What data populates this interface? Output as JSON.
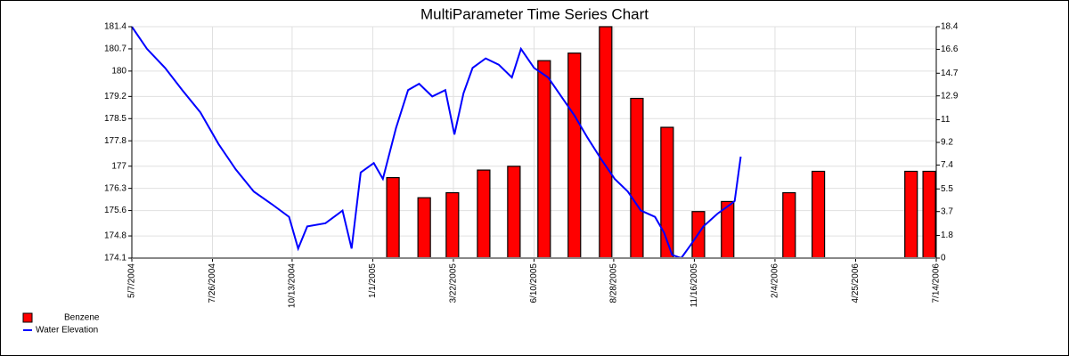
{
  "chart_data": {
    "type": "combo",
    "title": "MultiParameter Time Series Chart",
    "xlim": [
      "2004-05-07",
      "2006-07-14"
    ],
    "xticks": [
      {
        "value": "2004-05-07",
        "label": "5/7/2004"
      },
      {
        "value": "2004-07-26",
        "label": "7/26/2004"
      },
      {
        "value": "2004-10-13",
        "label": "10/13/2004"
      },
      {
        "value": "2005-01-01",
        "label": "1/1/2005"
      },
      {
        "value": "2005-03-22",
        "label": "3/22/2005"
      },
      {
        "value": "2005-06-10",
        "label": "6/10/2005"
      },
      {
        "value": "2005-08-28",
        "label": "8/28/2005"
      },
      {
        "value": "2005-11-16",
        "label": "11/16/2005"
      },
      {
        "value": "2006-02-04",
        "label": "2/4/2006"
      },
      {
        "value": "2006-04-25",
        "label": "4/25/2006"
      },
      {
        "value": "2006-07-14",
        "label": "7/14/2006"
      }
    ],
    "ylim": [
      174.1,
      181.4
    ],
    "yticks": [
      174.1,
      174.8,
      175.6,
      176.3,
      177,
      177.8,
      178.5,
      179.2,
      180,
      180.7,
      181.4
    ],
    "y2lim": [
      0,
      18.4
    ],
    "y2ticks": [
      0,
      1.8,
      3.7,
      5.5,
      7.4,
      9.2,
      11,
      12.9,
      14.7,
      16.6,
      18.4
    ],
    "grid": true,
    "legend": "bottom-left",
    "series": [
      {
        "name": "Benzene",
        "type": "bar",
        "axis": "y2",
        "color": "#ff0000",
        "x": [
          "2005-01-21",
          "2005-02-21",
          "2005-03-21",
          "2005-04-21",
          "2005-05-21",
          "2005-06-20",
          "2005-07-20",
          "2005-08-20",
          "2005-09-20",
          "2005-10-20",
          "2005-11-20",
          "2005-12-19",
          "2006-02-18",
          "2006-03-19",
          "2006-06-19",
          "2006-07-07"
        ],
        "values": [
          6.4,
          4.8,
          5.2,
          7.0,
          7.3,
          15.7,
          16.3,
          18.4,
          12.7,
          10.4,
          3.7,
          4.5,
          5.2,
          6.9,
          6.9,
          6.9
        ]
      },
      {
        "name": "Water Elevation",
        "type": "line",
        "color": "#0000ff",
        "x": [
          "2004-05-07",
          "2004-05-22",
          "2004-06-09",
          "2004-06-26",
          "2004-07-14",
          "2004-08-01",
          "2004-08-18",
          "2004-09-05",
          "2004-09-23",
          "2004-10-10",
          "2004-10-19",
          "2004-10-28",
          "2004-11-15",
          "2004-12-02",
          "2004-12-11",
          "2004-12-20",
          "2005-01-02",
          "2005-01-11",
          "2005-01-24",
          "2005-02-05",
          "2005-02-16",
          "2005-03-01",
          "2005-03-14",
          "2005-03-23",
          "2005-04-01",
          "2005-04-10",
          "2005-04-23",
          "2005-05-06",
          "2005-05-19",
          "2005-05-28",
          "2005-06-10",
          "2005-06-24",
          "2005-07-07",
          "2005-07-20",
          "2005-08-02",
          "2005-08-16",
          "2005-08-29",
          "2005-09-11",
          "2005-09-24",
          "2005-10-08",
          "2005-10-17",
          "2005-10-25",
          "2005-11-03",
          "2005-11-12",
          "2005-11-25",
          "2005-12-09",
          "2005-12-22",
          "2005-12-26",
          "2006-01-01"
        ],
        "values": [
          181.4,
          180.7,
          180.1,
          179.4,
          178.7,
          177.7,
          176.9,
          176.2,
          175.8,
          175.4,
          174.4,
          175.1,
          175.2,
          175.6,
          174.4,
          176.8,
          177.1,
          176.6,
          178.2,
          179.4,
          179.6,
          179.2,
          179.4,
          178.0,
          179.3,
          180.1,
          180.4,
          180.2,
          179.8,
          180.7,
          180.1,
          179.8,
          179.2,
          178.6,
          177.9,
          177.2,
          176.6,
          176.2,
          175.6,
          175.4,
          174.9,
          174.2,
          174.1,
          174.5,
          175.1,
          175.5,
          175.8,
          175.9,
          177.3
        ]
      }
    ]
  }
}
